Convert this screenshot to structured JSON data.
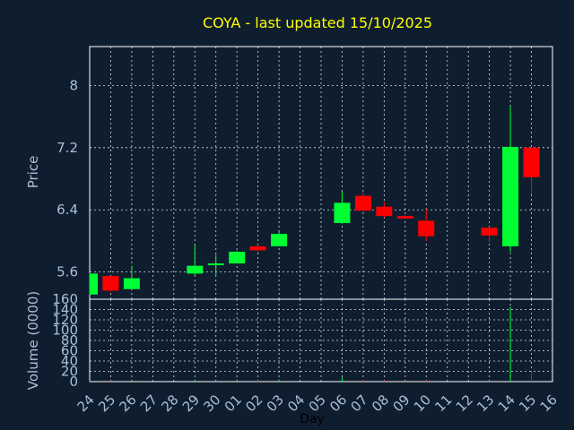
{
  "chart_data": {
    "type": "candlestick",
    "title": "COYA - last updated 15/10/2025",
    "xlabel": "Day",
    "price_ylabel": "Price",
    "volume_ylabel": "Volume (0000)",
    "price_ylim": [
      5.25,
      8.5
    ],
    "price_ticks": [
      "5.6",
      "6.4",
      "7.2",
      "8"
    ],
    "volume_ylim": [
      0,
      160
    ],
    "volume_ticks": [
      "0",
      "20",
      "40",
      "60",
      "80",
      "100",
      "120",
      "140",
      "160"
    ],
    "grid": true,
    "colors": {
      "background": "#0f1e2f",
      "up": "#00ff33",
      "down": "#ff0000",
      "title": "#ffff00",
      "axis_label": "#a9bfd9",
      "grid": "#ffffff"
    },
    "x_labels": [
      "24",
      "25",
      "26",
      "27",
      "28",
      "29",
      "30",
      "01",
      "02",
      "03",
      "04",
      "05",
      "06",
      "07",
      "08",
      "09",
      "10",
      "11",
      "12",
      "13",
      "14",
      "15",
      "16"
    ],
    "candles": [
      {
        "day": "24",
        "open": 5.31,
        "high": 5.59,
        "low": 5.31,
        "close": 5.58
      },
      {
        "day": "25",
        "open": 5.55,
        "high": 5.55,
        "low": 5.35,
        "close": 5.36
      },
      {
        "day": "26",
        "open": 5.38,
        "high": 5.68,
        "low": 5.38,
        "close": 5.52
      },
      {
        "day": "29",
        "open": 5.58,
        "high": 5.95,
        "low": 5.55,
        "close": 5.68
      },
      {
        "day": "30",
        "open": 5.7,
        "high": 5.82,
        "low": 5.55,
        "close": 5.71
      },
      {
        "day": "01",
        "open": 5.71,
        "high": 5.87,
        "low": 5.71,
        "close": 5.86
      },
      {
        "day": "02",
        "open": 5.93,
        "high": 5.95,
        "low": 5.86,
        "close": 5.88
      },
      {
        "day": "03",
        "open": 5.93,
        "high": 6.12,
        "low": 5.93,
        "close": 6.09
      },
      {
        "day": "06",
        "open": 6.23,
        "high": 6.63,
        "low": 6.22,
        "close": 6.49
      },
      {
        "day": "07",
        "open": 6.58,
        "high": 6.62,
        "low": 6.38,
        "close": 6.39
      },
      {
        "day": "08",
        "open": 6.44,
        "high": 6.5,
        "low": 6.3,
        "close": 6.32
      },
      {
        "day": "09",
        "open": 6.32,
        "high": 6.33,
        "low": 6.27,
        "close": 6.29
      },
      {
        "day": "10",
        "open": 6.26,
        "high": 6.41,
        "low": 6.0,
        "close": 6.06
      },
      {
        "day": "13",
        "open": 6.17,
        "high": 6.18,
        "low": 5.98,
        "close": 6.07
      },
      {
        "day": "14",
        "open": 5.93,
        "high": 7.73,
        "low": 5.86,
        "close": 7.21
      },
      {
        "day": "15",
        "open": 7.2,
        "high": 7.2,
        "low": 6.6,
        "close": 6.82
      }
    ],
    "volume": [
      {
        "day": "24",
        "value": 2,
        "dir": "up"
      },
      {
        "day": "25",
        "value": 1,
        "dir": "down"
      },
      {
        "day": "26",
        "value": 1,
        "dir": "up"
      },
      {
        "day": "29",
        "value": 3,
        "dir": "up"
      },
      {
        "day": "30",
        "value": 1,
        "dir": "up"
      },
      {
        "day": "01",
        "value": 1,
        "dir": "up"
      },
      {
        "day": "02",
        "value": 2,
        "dir": "down"
      },
      {
        "day": "03",
        "value": 4,
        "dir": "up"
      },
      {
        "day": "06",
        "value": 8,
        "dir": "up"
      },
      {
        "day": "07",
        "value": 3,
        "dir": "down"
      },
      {
        "day": "08",
        "value": 2,
        "dir": "down"
      },
      {
        "day": "09",
        "value": 1,
        "dir": "down"
      },
      {
        "day": "10",
        "value": 2,
        "dir": "down"
      },
      {
        "day": "13",
        "value": 1,
        "dir": "down"
      },
      {
        "day": "14",
        "value": 145,
        "dir": "up"
      },
      {
        "day": "15",
        "value": 20,
        "dir": "down"
      }
    ]
  }
}
